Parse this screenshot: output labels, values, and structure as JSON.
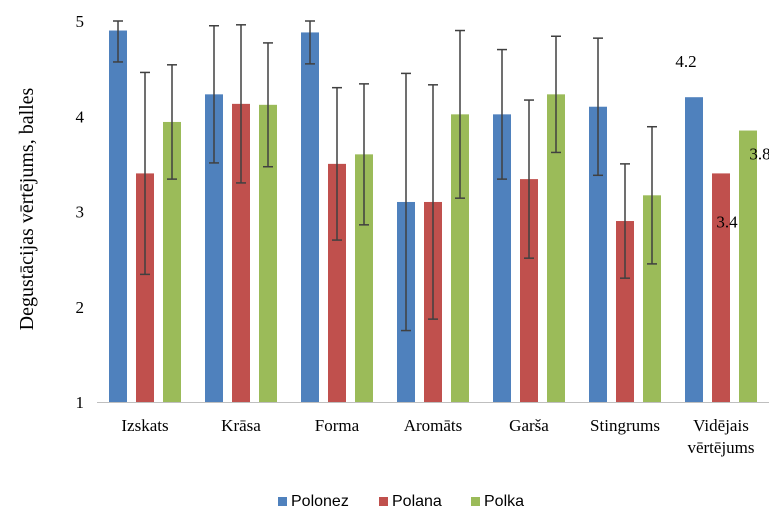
{
  "chart_data": {
    "type": "bar",
    "ylabel": "Degustācijas vērtējums, balles",
    "ylim": [
      1,
      5
    ],
    "yticks": [
      "1",
      "2",
      "3",
      "4",
      "5"
    ],
    "categories": [
      [
        "Izskats"
      ],
      [
        "Krāsa"
      ],
      [
        "Forma"
      ],
      [
        "Aromāts"
      ],
      [
        "Garša"
      ],
      [
        "Stingrums"
      ],
      [
        "Vidējais",
        "vērtējums"
      ]
    ],
    "series": [
      {
        "name": "Polonez",
        "color": "#4f81bd",
        "values": [
          4.9,
          4.23,
          4.88,
          3.1,
          4.02,
          4.1,
          4.2
        ],
        "errors": [
          0.33,
          0.72,
          0.33,
          1.35,
          0.68,
          0.72,
          null
        ]
      },
      {
        "name": "Polana",
        "color": "#c0504d",
        "values": [
          3.4,
          4.13,
          3.5,
          3.1,
          3.34,
          2.9,
          3.4
        ],
        "errors": [
          1.06,
          0.83,
          0.8,
          1.23,
          0.83,
          0.6,
          null
        ]
      },
      {
        "name": "Polka",
        "color": "#9bbb59",
        "values": [
          3.94,
          4.12,
          3.6,
          4.02,
          4.23,
          3.17,
          3.85
        ],
        "errors": [
          0.6,
          0.65,
          0.74,
          0.88,
          0.61,
          0.72,
          null
        ]
      }
    ],
    "data_labels": [
      {
        "series": 0,
        "category": 6,
        "text": "4.2"
      },
      {
        "series": 1,
        "category": 6,
        "text": "3.4"
      },
      {
        "series": 2,
        "category": 6,
        "text": "3.8"
      }
    ],
    "legend": "bottom",
    "grid": false
  }
}
